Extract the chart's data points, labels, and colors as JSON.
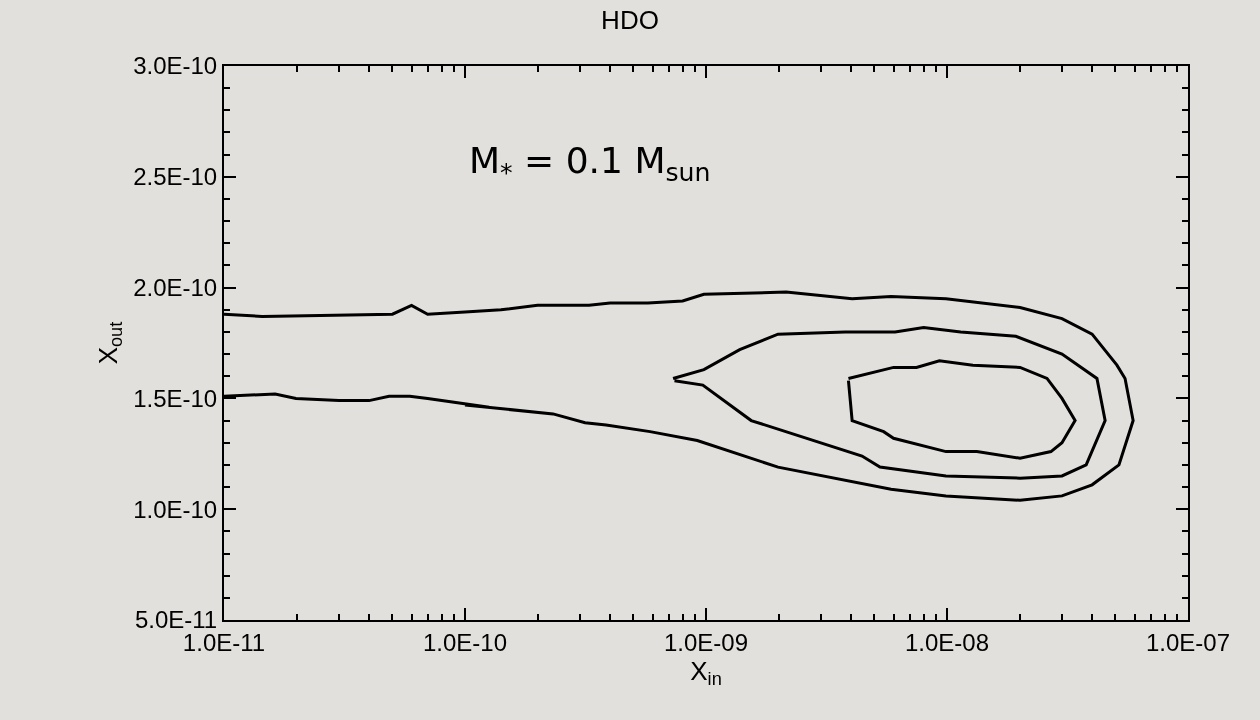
{
  "chart_data": {
    "type": "line",
    "title": "HDO",
    "xlabel": "X$_{in}$",
    "ylabel": "X$_{out}$",
    "annotations": [
      "M$_{*}$ = 0.1 M$_{sun}$"
    ],
    "log": "x",
    "grid": false,
    "marker": "none",
    "line_style": "solid",
    "xlim": [
      1e-11,
      1e-07
    ],
    "xticks": [
      {
        "value": 1e-11,
        "label": "1.0E-11"
      },
      {
        "value": 1e-10,
        "label": "1.0E-10"
      },
      {
        "value": 1e-09,
        "label": "1.0E-09"
      },
      {
        "value": 1e-08,
        "label": "1.0E-08"
      },
      {
        "value": 1e-07,
        "label": "1.0E-07"
      }
    ],
    "ylim": [
      5e-11,
      3e-10
    ],
    "yticks": [
      {
        "value": 5e-11,
        "label": "5.0E-11"
      },
      {
        "value": 1e-10,
        "label": "1.0E-10"
      },
      {
        "value": 1.5e-10,
        "label": "1.5E-10"
      },
      {
        "value": 2e-10,
        "label": "2.0E-10"
      },
      {
        "value": 2.5e-10,
        "label": "2.5E-10"
      },
      {
        "value": 3e-10,
        "label": "3.0E-10"
      }
    ],
    "series": [
      {
        "color": "#000000",
        "x": [
          1e-11,
          1.44e-11,
          5e-11,
          6e-11,
          7e-11,
          1e-10,
          1.41e-10,
          2e-10,
          3.27e-10,
          4e-10,
          5.74e-10,
          8e-10,
          9.8e-10,
          2.15e-09,
          4.04e-09,
          5.86e-09,
          9.9e-09,
          2.01e-08,
          3e-08,
          4e-08,
          5.07e-08,
          5.48e-08,
          5.92e-08,
          5.17e-08,
          4e-08,
          3e-08,
          2.01e-08,
          9.9e-09,
          5.86e-09,
          1.99e-09,
          9.2e-10,
          5.86e-10,
          3.85e-10,
          3.15e-10,
          2.32e-10,
          1e-10,
          1.26e-10,
          7e-11,
          5.9e-11,
          4.84e-11,
          4e-11,
          3e-11,
          1.99e-11,
          1.63e-11,
          1e-11
        ],
        "values": [
          1.88e-10,
          1.87e-10,
          1.88e-10,
          1.92e-10,
          1.88e-10,
          1.89e-10,
          1.9e-10,
          1.92e-10,
          1.92e-10,
          1.93e-10,
          1.93e-10,
          1.94e-10,
          1.97e-10,
          1.98e-10,
          1.95e-10,
          1.96e-10,
          1.95e-10,
          1.91e-10,
          1.86e-10,
          1.79e-10,
          1.65e-10,
          1.59e-10,
          1.4e-10,
          1.2e-10,
          1.11e-10,
          1.06e-10,
          1.04e-10,
          1.06e-10,
          1.09e-10,
          1.19e-10,
          1.31e-10,
          1.35e-10,
          1.38e-10,
          1.39e-10,
          1.43e-10,
          1.47e-10,
          1.46e-10,
          1.5e-10,
          1.51e-10,
          1.51e-10,
          1.49e-10,
          1.49e-10,
          1.5e-10,
          1.52e-10,
          1.51e-10
        ]
      },
      {
        "color": "#000000",
        "x": [
          7.3e-10,
          9.8e-10,
          1.38e-09,
          1.99e-09,
          3.78e-09,
          6.09e-09,
          8e-09,
          1.14e-08,
          1.93e-08,
          3e-08,
          4.19e-08,
          4.53e-08,
          3.78e-08,
          3e-08,
          2.01e-08,
          9.9e-09,
          5.27e-09,
          4.44e-09,
          1.54e-09,
          9.7e-10,
          7.4e-10
        ],
        "values": [
          1.59e-10,
          1.63e-10,
          1.72e-10,
          1.79e-10,
          1.8e-10,
          1.8e-10,
          1.82e-10,
          1.8e-10,
          1.78e-10,
          1.7e-10,
          1.59e-10,
          1.4e-10,
          1.2e-10,
          1.15e-10,
          1.14e-10,
          1.15e-10,
          1.19e-10,
          1.24e-10,
          1.4e-10,
          1.56e-10,
          1.58e-10
        ]
      },
      {
        "color": "#000000",
        "x": [
          3.9e-09,
          6e-09,
          7.47e-09,
          9.3e-09,
          1.28e-08,
          2.01e-08,
          2.6e-08,
          3e-08,
          3.4e-08,
          3e-08,
          2.7e-08,
          2.01e-08,
          1.33e-08,
          9.9e-09,
          6e-09,
          5.46e-09,
          4.04e-09,
          3.9e-09
        ],
        "values": [
          1.59e-10,
          1.64e-10,
          1.64e-10,
          1.67e-10,
          1.65e-10,
          1.64e-10,
          1.59e-10,
          1.5e-10,
          1.4e-10,
          1.3e-10,
          1.26e-10,
          1.23e-10,
          1.26e-10,
          1.26e-10,
          1.32e-10,
          1.35e-10,
          1.4e-10,
          1.58e-10
        ]
      }
    ]
  }
}
